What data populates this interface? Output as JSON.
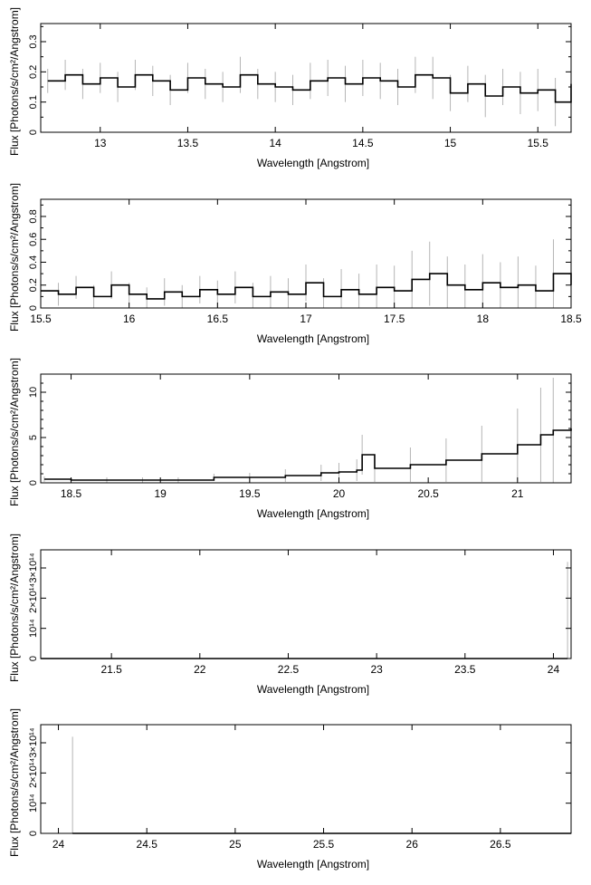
{
  "chart_data": [
    {
      "type": "line",
      "xlabel": "Wavelength [Angstrom]",
      "ylabel": "Flux [Photons/s/cm²/Angstrom]",
      "xlim": [
        12.66,
        15.69
      ],
      "ylim": [
        0,
        0.36
      ],
      "xticks": [
        13,
        13.5,
        14,
        14.5,
        15,
        15.5
      ],
      "xtick_labels": [
        "13",
        "13.5",
        "14",
        "14.5",
        "15",
        "15.5"
      ],
      "yticks": [
        0,
        0.05,
        0.1,
        0.15,
        0.2,
        0.25,
        0.3,
        0.35
      ],
      "ytick_labels": [
        "0",
        "",
        "0.1",
        "",
        "0.2",
        "",
        "0.3",
        ""
      ],
      "series": [
        {
          "x": [
            12.7,
            12.8,
            12.9,
            13.0,
            13.1,
            13.2,
            13.3,
            13.4,
            13.5,
            13.6,
            13.7,
            13.8,
            13.9,
            14.0,
            14.1,
            14.2,
            14.3,
            14.4,
            14.5,
            14.6,
            14.7,
            14.8,
            14.9,
            15.0,
            15.1,
            15.2,
            15.3,
            15.4,
            15.5,
            15.6,
            15.69
          ],
          "y": [
            0.17,
            0.19,
            0.16,
            0.18,
            0.15,
            0.19,
            0.17,
            0.14,
            0.18,
            0.16,
            0.15,
            0.19,
            0.16,
            0.15,
            0.14,
            0.17,
            0.18,
            0.16,
            0.18,
            0.17,
            0.15,
            0.19,
            0.18,
            0.13,
            0.16,
            0.12,
            0.15,
            0.13,
            0.14,
            0.1,
            0.16
          ],
          "err": [
            0.04,
            0.05,
            0.05,
            0.05,
            0.05,
            0.05,
            0.05,
            0.05,
            0.05,
            0.05,
            0.05,
            0.06,
            0.05,
            0.05,
            0.05,
            0.06,
            0.06,
            0.06,
            0.06,
            0.06,
            0.06,
            0.06,
            0.07,
            0.06,
            0.06,
            0.07,
            0.06,
            0.07,
            0.07,
            0.08,
            0.07
          ]
        }
      ]
    },
    {
      "type": "line",
      "xlabel": "Wavelength [Angstrom]",
      "ylabel": "Flux [Photons/s/cm²/Angstrom]",
      "xlim": [
        15.5,
        18.5
      ],
      "ylim": [
        0,
        0.95
      ],
      "xticks": [
        15.5,
        16,
        16.5,
        17,
        17.5,
        18,
        18.5
      ],
      "xtick_labels": [
        "15.5",
        "16",
        "16.5",
        "17",
        "17.5",
        "18",
        "18.5"
      ],
      "yticks": [
        0,
        0.1,
        0.2,
        0.3,
        0.4,
        0.5,
        0.6,
        0.7,
        0.8,
        0.9
      ],
      "ytick_labels": [
        "0",
        "",
        "0.2",
        "",
        "0.4",
        "",
        "0.6",
        "",
        "0.8",
        ""
      ],
      "series": [
        {
          "x": [
            15.5,
            15.6,
            15.7,
            15.8,
            15.9,
            16.0,
            16.1,
            16.2,
            16.3,
            16.4,
            16.5,
            16.6,
            16.7,
            16.8,
            16.9,
            17.0,
            17.1,
            17.2,
            17.3,
            17.4,
            17.5,
            17.6,
            17.7,
            17.8,
            17.9,
            18.0,
            18.1,
            18.2,
            18.3,
            18.4,
            18.5
          ],
          "y": [
            0.15,
            0.12,
            0.18,
            0.1,
            0.2,
            0.12,
            0.08,
            0.14,
            0.1,
            0.16,
            0.12,
            0.18,
            0.1,
            0.14,
            0.12,
            0.22,
            0.1,
            0.16,
            0.12,
            0.18,
            0.15,
            0.25,
            0.3,
            0.2,
            0.16,
            0.22,
            0.18,
            0.2,
            0.15,
            0.3,
            0.2
          ],
          "err": [
            0.1,
            0.1,
            0.1,
            0.1,
            0.12,
            0.1,
            0.1,
            0.12,
            0.1,
            0.12,
            0.12,
            0.14,
            0.12,
            0.14,
            0.14,
            0.16,
            0.16,
            0.18,
            0.18,
            0.2,
            0.22,
            0.25,
            0.28,
            0.25,
            0.22,
            0.25,
            0.22,
            0.25,
            0.22,
            0.3,
            0.25
          ]
        }
      ]
    },
    {
      "type": "line",
      "xlabel": "Wavelength [Angstrom]",
      "ylabel": "Flux [Photons/s/cm²/Angstrom]",
      "xlim": [
        18.33,
        21.3
      ],
      "ylim": [
        0,
        12
      ],
      "xticks": [
        18.5,
        19,
        19.5,
        20,
        20.5,
        21
      ],
      "xtick_labels": [
        "18.5",
        "19",
        "19.5",
        "20",
        "20.5",
        "21"
      ],
      "yticks": [
        0,
        1,
        2,
        3,
        4,
        5,
        6,
        7,
        8,
        9,
        10,
        11
      ],
      "ytick_labels": [
        "0",
        "",
        "",
        "",
        "",
        "5",
        "",
        "",
        "",
        "",
        "10",
        ""
      ],
      "series": [
        {
          "x": [
            18.35,
            18.5,
            18.7,
            18.9,
            19.1,
            19.3,
            19.5,
            19.7,
            19.9,
            20.0,
            20.1,
            20.13,
            20.2,
            20.4,
            20.6,
            20.8,
            21.0,
            21.13,
            21.2,
            21.3
          ],
          "y": [
            0.4,
            0.3,
            0.3,
            0.3,
            0.3,
            0.6,
            0.6,
            0.8,
            1.1,
            1.2,
            1.4,
            3.1,
            1.6,
            2.0,
            2.5,
            3.2,
            4.2,
            5.3,
            5.8,
            6.0
          ],
          "err": [
            0.3,
            0.3,
            0.3,
            0.3,
            0.3,
            0.4,
            0.5,
            0.7,
            0.9,
            1.0,
            1.2,
            2.2,
            1.5,
            1.9,
            2.4,
            3.1,
            4.0,
            5.2,
            5.8,
            6.0
          ]
        }
      ]
    },
    {
      "type": "line",
      "xlabel": "Wavelength [Angstrom]",
      "ylabel": "Flux [Photons/s/cm²/Angstrom]",
      "xlim": [
        21.1,
        24.1
      ],
      "ylim": [
        0,
        360000000000000.0
      ],
      "xticks": [
        21.5,
        22,
        22.5,
        23,
        23.5,
        24
      ],
      "xtick_labels": [
        "21.5",
        "22",
        "22.5",
        "23",
        "23.5",
        "24"
      ],
      "yticks": [
        0,
        100000000000000.0,
        200000000000000.0,
        300000000000000.0
      ],
      "ytick_labels": [
        "0",
        "10¹⁴",
        "2×10¹⁴",
        "3×10¹⁴"
      ],
      "series": [
        {
          "x": [
            21.1,
            22.0,
            23.0,
            24.0,
            24.08
          ],
          "y": [
            0,
            0,
            0,
            0,
            0
          ],
          "err": [
            0,
            0,
            0,
            0,
            320000000000000.0
          ]
        }
      ]
    },
    {
      "type": "line",
      "xlabel": "Wavelength [Angstrom]",
      "ylabel": "Flux [Photons/s/cm²/Angstrom]",
      "xlim": [
        23.9,
        26.9
      ],
      "ylim": [
        0,
        360000000000000.0
      ],
      "xticks": [
        24,
        24.5,
        25,
        25.5,
        26,
        26.5
      ],
      "xtick_labels": [
        "24",
        "24.5",
        "25",
        "25.5",
        "26",
        "26.5"
      ],
      "yticks": [
        0,
        100000000000000.0,
        200000000000000.0,
        300000000000000.0
      ],
      "ytick_labels": [
        "0",
        "10¹⁴",
        "2×10¹⁴",
        "3×10¹⁴"
      ],
      "series": [
        {
          "x": [
            24.08,
            25.0,
            26.0,
            26.9
          ],
          "y": [
            0,
            0,
            0,
            0
          ],
          "err": [
            320000000000000.0,
            0,
            0,
            0
          ]
        }
      ]
    }
  ]
}
